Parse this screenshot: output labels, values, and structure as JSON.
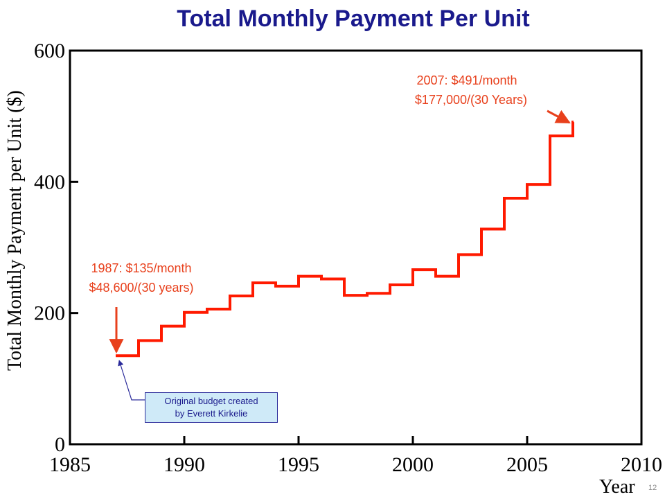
{
  "title": "Total Monthly Payment Per Unit",
  "slide_number": "12",
  "colors": {
    "title": "#1a1a8c",
    "line": "#ff1a00",
    "annotation": "#e8401c",
    "note_border": "#2a2a9a",
    "note_fill": "#cfeaf8"
  },
  "chart_data": {
    "type": "line",
    "step": true,
    "title": "Total Monthly Payment Per Unit",
    "xlabel": "Year",
    "ylabel": "Total Monthly Payment per Unit ($)",
    "xlim": [
      1985,
      2010
    ],
    "ylim": [
      0,
      600
    ],
    "xticks": [
      "1985",
      "1990",
      "1995",
      "2000",
      "2005",
      "2010"
    ],
    "yticks": [
      "0",
      "200",
      "400",
      "600"
    ],
    "grid": false,
    "series": [
      {
        "x": [
          1987,
          1988,
          1989,
          1990,
          1991,
          1992,
          1993,
          1994,
          1995,
          1996,
          1997,
          1998,
          1999,
          2000,
          2001,
          2002,
          2003,
          2004,
          2005,
          2006,
          2007
        ],
        "y": [
          135,
          158,
          180,
          201,
          206,
          226,
          246,
          241,
          256,
          252,
          227,
          230,
          243,
          266,
          256,
          289,
          328,
          375,
          396,
          470,
          491
        ]
      }
    ],
    "annotations": [
      {
        "lines": [
          "1987: $135/month",
          "$48,600/(30 years)"
        ],
        "x": 1987,
        "y": 135
      },
      {
        "lines": [
          "2007: $491/month",
          "$177,000/(30 Years)"
        ],
        "x": 2007,
        "y": 491
      }
    ],
    "note": {
      "lines": [
        "Original budget created",
        "by Everett Kirkelie"
      ],
      "x": 1987,
      "y": 135
    }
  }
}
